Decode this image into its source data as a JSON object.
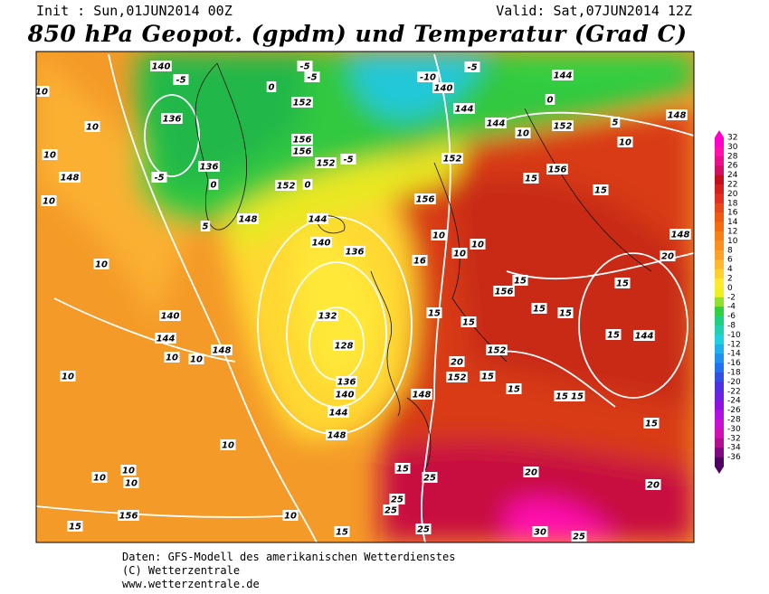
{
  "header": {
    "init": "Init : Sun,01JUN2014 00Z",
    "valid": "Valid: Sat,07JUN2014 12Z",
    "title": "850 hPa Geopot. (gpdm) und Temperatur (Grad C)"
  },
  "colorbar": {
    "labels": [
      32,
      30,
      28,
      26,
      24,
      22,
      20,
      18,
      16,
      14,
      12,
      10,
      8,
      6,
      4,
      2,
      0,
      -2,
      -4,
      -6,
      -8,
      -10,
      -12,
      -14,
      -16,
      -18,
      -20,
      -22,
      -24,
      -26,
      -28,
      -30,
      -32,
      -34,
      -36
    ],
    "colors": [
      "#ff00c8",
      "#ff10a8",
      "#e8108a",
      "#d01060",
      "#c01020",
      "#d02020",
      "#e03020",
      "#e84818",
      "#f05a10",
      "#f46c10",
      "#f68018",
      "#f89020",
      "#fba028",
      "#fdb830",
      "#ffd030",
      "#ffe830",
      "#f0f020",
      "#90e030",
      "#30d040",
      "#20d080",
      "#20d0b0",
      "#20d0e0",
      "#20b0f0",
      "#2090f0",
      "#2070f0",
      "#3050e0",
      "#5030e0",
      "#7020e0",
      "#9010e0",
      "#b010e0",
      "#c810d0",
      "#d010b0",
      "#b01090",
      "#800880",
      "#500060"
    ]
  },
  "contour_labels": [
    140,
    -5,
    -5,
    -5,
    0,
    -10,
    140,
    -5,
    144,
    0,
    144,
    144,
    152,
    148,
    10,
    5,
    10,
    136,
    152,
    156,
    156,
    152,
    -5,
    136,
    -5,
    0,
    152,
    0,
    148,
    144,
    140,
    136,
    5,
    152,
    156,
    156,
    15,
    15,
    148,
    20,
    10,
    10,
    10,
    16,
    15,
    156,
    15,
    15,
    15,
    15,
    144,
    15,
    15,
    132,
    128,
    136,
    140,
    144,
    148,
    152,
    20,
    15,
    152,
    148,
    15,
    15,
    15,
    15,
    10,
    10,
    10,
    148,
    10,
    140,
    144,
    148,
    10,
    10,
    10,
    10,
    10,
    10,
    156,
    15,
    10,
    15,
    15,
    25,
    25,
    25,
    25,
    20,
    20,
    30,
    25,
    10,
    10
  ],
  "footer": {
    "line1": "Daten: GFS-Modell des amerikanischen Wetterdienstes",
    "line2": "(C) Wetterzentrale",
    "line3": "www.wetterzentrale.de"
  }
}
